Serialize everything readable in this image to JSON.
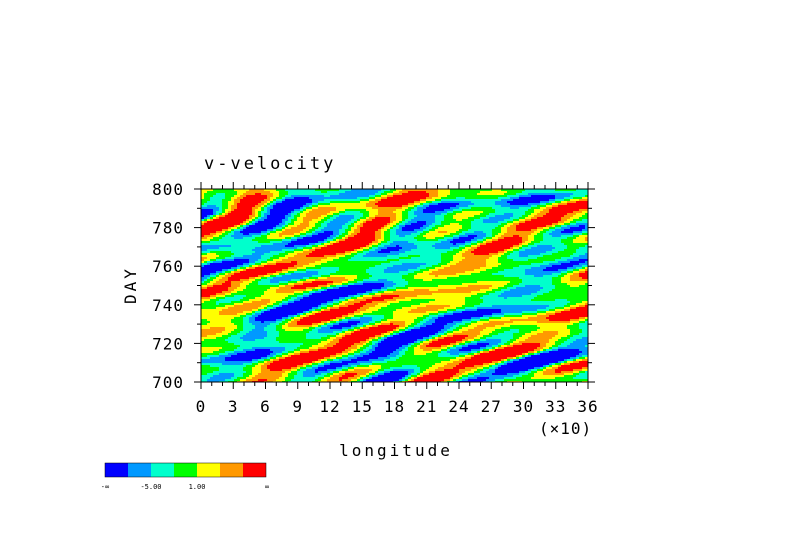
{
  "chart_data": {
    "type": "heatmap",
    "title": "v-velocity",
    "xlabel": "longitude",
    "ylabel": "DAY",
    "x_multiplier_label": "(×10)",
    "x_ticks": [
      "0",
      "3",
      "6",
      "9",
      "12",
      "15",
      "18",
      "21",
      "24",
      "27",
      "30",
      "33",
      "36"
    ],
    "x_tick_values": [
      0,
      3,
      6,
      9,
      12,
      15,
      18,
      21,
      24,
      27,
      30,
      33,
      36
    ],
    "xlim": [
      0,
      36
    ],
    "y_ticks": [
      "700",
      "720",
      "740",
      "760",
      "780",
      "800"
    ],
    "y_tick_values": [
      700,
      720,
      740,
      760,
      780,
      800
    ],
    "ylim": [
      700,
      800
    ],
    "levels": [
      {
        "color": "#0000ff"
      },
      {
        "color": "#0099ff"
      },
      {
        "color": "#00ffcc"
      },
      {
        "color": "#00ff00"
      },
      {
        "color": "#ffff00"
      },
      {
        "color": "#ff9900"
      },
      {
        "color": "#ff0000"
      }
    ],
    "colorbar_labels": [
      "-∞",
      "-5.00",
      "1.00",
      "∞"
    ]
  }
}
